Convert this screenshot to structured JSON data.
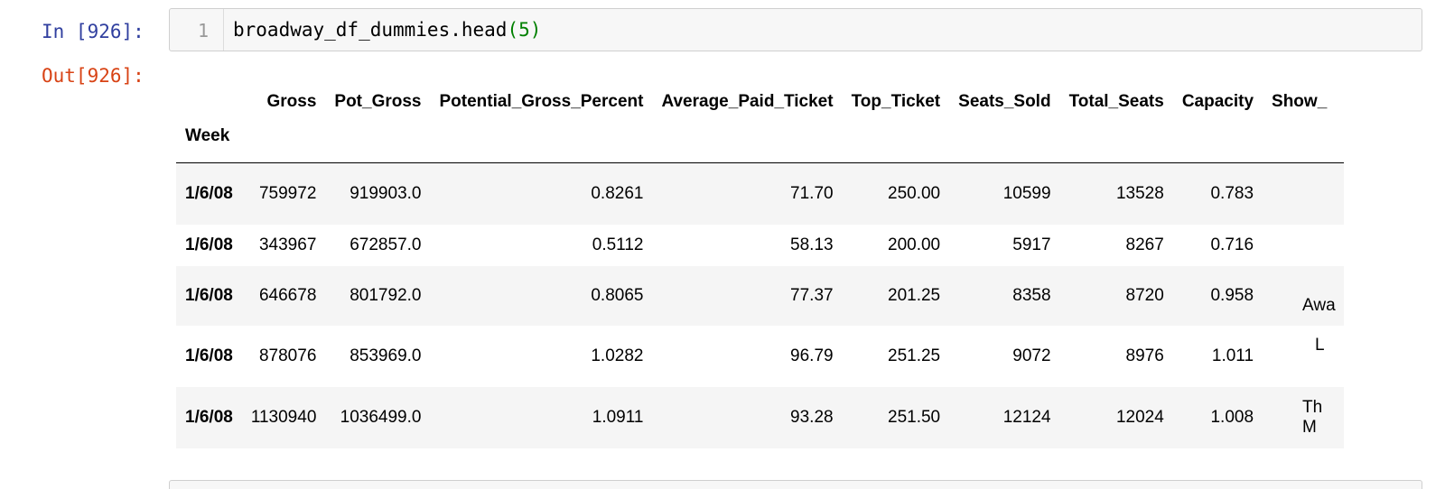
{
  "cell_in": {
    "prompt": "In [926]:",
    "line_number": "1",
    "code_text": "broadway_df_dummies.head",
    "code_paren_open": "(",
    "code_arg": "5",
    "code_paren_close": ")"
  },
  "cell_out": {
    "prompt": "Out[926]:",
    "table": {
      "index_name": "Week",
      "columns": [
        "Gross",
        "Pot_Gross",
        "Potential_Gross_Percent",
        "Average_Paid_Ticket",
        "Top_Ticket",
        "Seats_Sold",
        "Total_Seats",
        "Capacity",
        "Show_"
      ],
      "rows": [
        {
          "index": "1/6/08",
          "values": [
            "759972",
            "919903.0",
            "0.8261",
            "71.70",
            "250.00",
            "10599",
            "13528",
            "0.783"
          ],
          "show": ""
        },
        {
          "index": "1/6/08",
          "values": [
            "343967",
            "672857.0",
            "0.5112",
            "58.13",
            "200.00",
            "5917",
            "8267",
            "0.716"
          ],
          "show": ""
        },
        {
          "index": "1/6/08",
          "values": [
            "646678",
            "801792.0",
            "0.8065",
            "77.37",
            "201.25",
            "8358",
            "8720",
            "0.958"
          ],
          "show": "Awa"
        },
        {
          "index": "1/6/08",
          "values": [
            "878076",
            "853969.0",
            "1.0282",
            "96.79",
            "251.25",
            "9072",
            "8976",
            "1.011"
          ],
          "show": "L"
        },
        {
          "index": "1/6/08",
          "values": [
            "1130940",
            "1036499.0",
            "1.0911",
            "93.28",
            "251.50",
            "12124",
            "12024",
            "1.008"
          ],
          "show": "Th\nM"
        }
      ]
    }
  }
}
